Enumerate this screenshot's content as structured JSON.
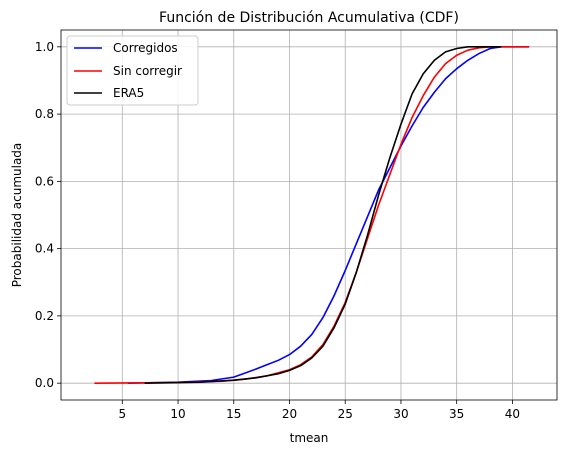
{
  "chart_data": {
    "type": "line",
    "title": "Función de Distribución Acumulativa (CDF)",
    "xlabel": "tmean",
    "ylabel": "Probabilidad acumulada",
    "xlim": [
      -0.5,
      44.0
    ],
    "ylim": [
      -0.05,
      1.05
    ],
    "xticks": [
      5,
      10,
      15,
      20,
      25,
      30,
      35,
      40
    ],
    "yticks": [
      0.0,
      0.2,
      0.4,
      0.6,
      0.8,
      1.0
    ],
    "xtick_labels": [
      "5",
      "10",
      "15",
      "20",
      "25",
      "30",
      "35",
      "40"
    ],
    "ytick_labels": [
      "0.0",
      "0.2",
      "0.4",
      "0.6",
      "0.8",
      "1.0"
    ],
    "grid": true,
    "legend_position": "top-left",
    "series": [
      {
        "name": "Corregidos",
        "color": "#0000ff",
        "points": [
          [
            5.5,
            0.0
          ],
          [
            10,
            0.003
          ],
          [
            13,
            0.008
          ],
          [
            15,
            0.018
          ],
          [
            16,
            0.03
          ],
          [
            17,
            0.042
          ],
          [
            18,
            0.055
          ],
          [
            19,
            0.068
          ],
          [
            20,
            0.085
          ],
          [
            21,
            0.11
          ],
          [
            22,
            0.145
          ],
          [
            23,
            0.195
          ],
          [
            24,
            0.26
          ],
          [
            25,
            0.335
          ],
          [
            26,
            0.415
          ],
          [
            27,
            0.495
          ],
          [
            28,
            0.575
          ],
          [
            29,
            0.64
          ],
          [
            30,
            0.705
          ],
          [
            31,
            0.765
          ],
          [
            32,
            0.82
          ],
          [
            33,
            0.865
          ],
          [
            34,
            0.905
          ],
          [
            35,
            0.935
          ],
          [
            36,
            0.96
          ],
          [
            37,
            0.98
          ],
          [
            38,
            0.995
          ],
          [
            39,
            1.0
          ],
          [
            41.5,
            1.0
          ]
        ]
      },
      {
        "name": "Sin corregir",
        "color": "#ff0000",
        "points": [
          [
            2.5,
            0.0
          ],
          [
            10,
            0.002
          ],
          [
            14,
            0.006
          ],
          [
            16,
            0.012
          ],
          [
            18,
            0.022
          ],
          [
            20,
            0.04
          ],
          [
            21,
            0.055
          ],
          [
            22,
            0.078
          ],
          [
            23,
            0.115
          ],
          [
            24,
            0.17
          ],
          [
            25,
            0.24
          ],
          [
            26,
            0.33
          ],
          [
            27,
            0.43
          ],
          [
            28,
            0.53
          ],
          [
            29,
            0.62
          ],
          [
            30,
            0.71
          ],
          [
            31,
            0.79
          ],
          [
            32,
            0.855
          ],
          [
            33,
            0.91
          ],
          [
            34,
            0.95
          ],
          [
            35,
            0.975
          ],
          [
            36,
            0.99
          ],
          [
            37,
            0.997
          ],
          [
            38,
            1.0
          ],
          [
            41.5,
            1.0
          ]
        ]
      },
      {
        "name": "ERA5",
        "color": "#000000",
        "points": [
          [
            7,
            0.0
          ],
          [
            12,
            0.003
          ],
          [
            15,
            0.009
          ],
          [
            17,
            0.016
          ],
          [
            19,
            0.028
          ],
          [
            20,
            0.038
          ],
          [
            21,
            0.052
          ],
          [
            22,
            0.075
          ],
          [
            23,
            0.11
          ],
          [
            24,
            0.165
          ],
          [
            25,
            0.235
          ],
          [
            26,
            0.33
          ],
          [
            27,
            0.44
          ],
          [
            28,
            0.56
          ],
          [
            29,
            0.67
          ],
          [
            30,
            0.77
          ],
          [
            31,
            0.86
          ],
          [
            32,
            0.92
          ],
          [
            33,
            0.96
          ],
          [
            34,
            0.985
          ],
          [
            35,
            0.995
          ],
          [
            36,
            1.0
          ],
          [
            39,
            1.0
          ]
        ]
      }
    ]
  }
}
